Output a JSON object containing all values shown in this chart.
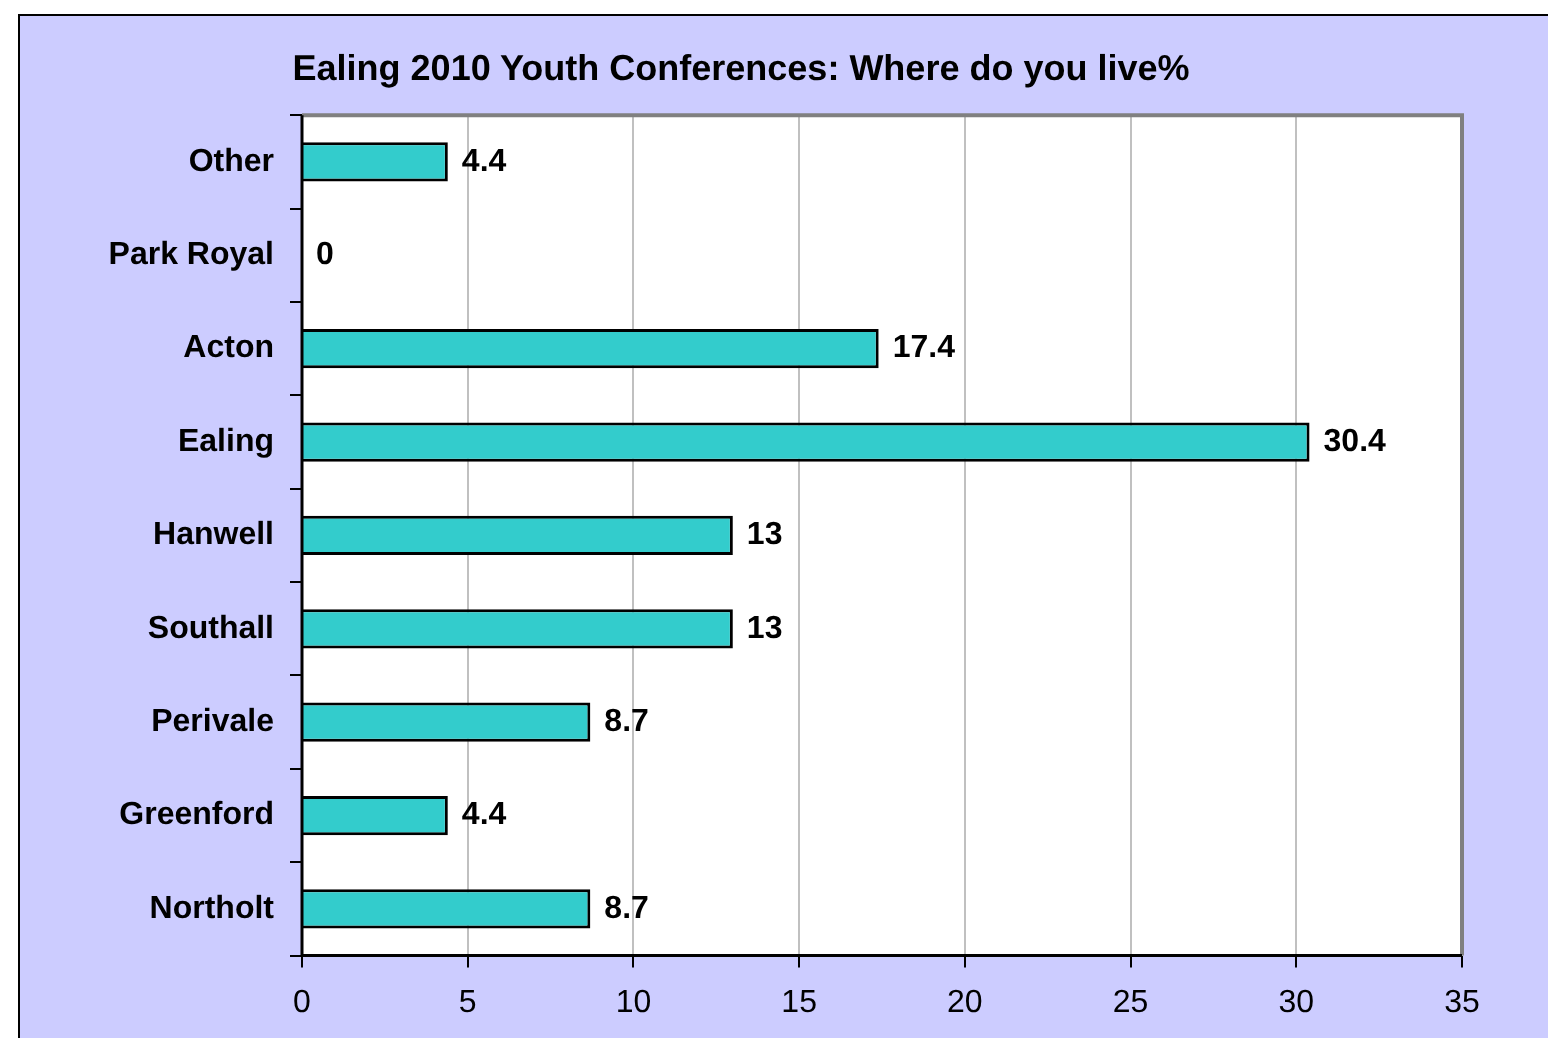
{
  "chart_data": {
    "type": "bar",
    "orientation": "horizontal",
    "title": "Ealing 2010 Youth Conferences: Where do you live%",
    "categories": [
      "Other",
      "Park Royal",
      "Acton",
      "Ealing",
      "Hanwell",
      "Southall",
      "Perivale",
      "Greenford",
      "Northolt"
    ],
    "values": [
      4.4,
      0,
      17.4,
      30.4,
      13,
      13,
      8.7,
      4.4,
      8.7
    ],
    "color": "#33cccc",
    "xlim": [
      0,
      35
    ],
    "xticks": [
      0,
      5,
      10,
      15,
      20,
      25,
      30,
      35
    ],
    "grid": "x",
    "data_labels": true,
    "legend": false
  }
}
